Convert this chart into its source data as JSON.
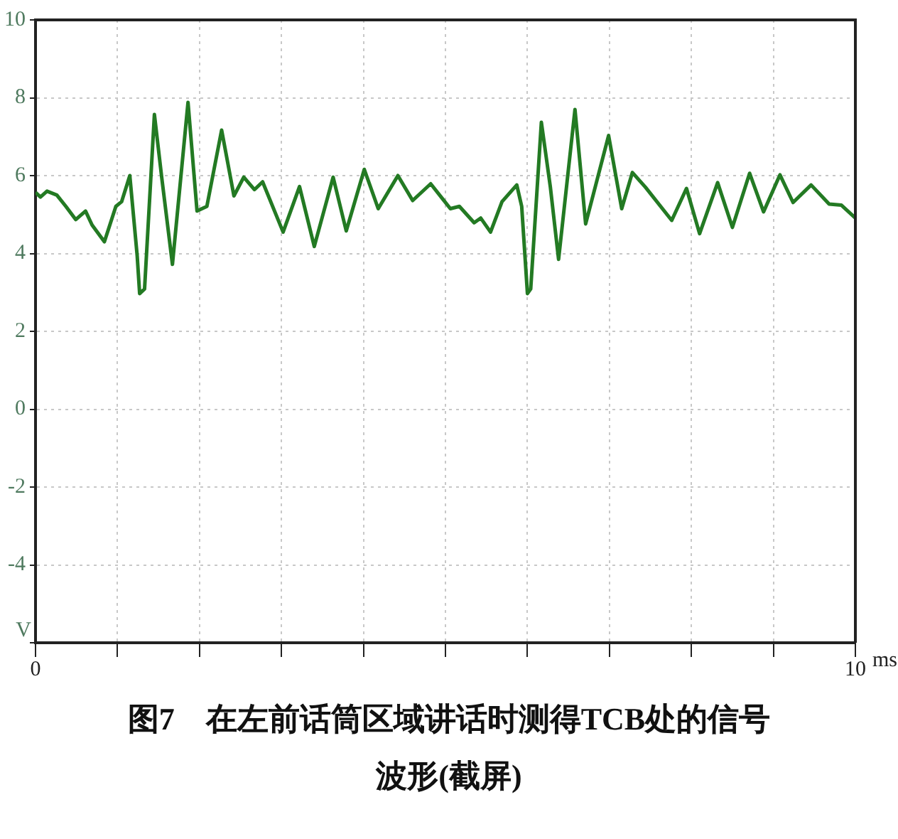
{
  "chart_data": {
    "type": "line",
    "title": "图7　在左前话筒区域讲话时测得TCB处的信号波形(截屏)",
    "xlabel": "ms",
    "ylabel": "V",
    "xlim": [
      0,
      10
    ],
    "ylim": [
      -6,
      10
    ],
    "xticks": [
      0,
      {
        "value": 1,
        "label": null
      },
      {
        "value": 2,
        "label": null
      },
      {
        "value": 3,
        "label": null
      },
      {
        "value": 4,
        "label": null
      },
      {
        "value": 5,
        "label": null
      },
      {
        "value": 6,
        "label": null
      },
      {
        "value": 7,
        "label": null
      },
      {
        "value": 8,
        "label": null
      },
      {
        "value": 9,
        "label": null
      },
      10
    ],
    "yticks": [
      {
        "value": -6,
        "label": null
      },
      -4,
      -2,
      0,
      2,
      4,
      6,
      8,
      10
    ],
    "grid": true,
    "legend": false,
    "marker": "none",
    "line_style": "solid",
    "series": [
      {
        "color": "#237a23",
        "x": [
          0,
          0.06,
          0.14,
          0.26,
          0.37,
          0.49,
          0.61,
          0.69,
          0.84,
          0.98,
          1.05,
          1.15,
          1.24,
          1.27,
          1.33,
          1.45,
          1.54,
          1.67,
          1.86,
          1.97,
          2.09,
          2.27,
          2.42,
          2.54,
          2.67,
          2.77,
          3.02,
          3.22,
          3.4,
          3.63,
          3.79,
          4.01,
          4.18,
          4.42,
          4.6,
          4.82,
          4.97,
          5.06,
          5.17,
          5.35,
          5.43,
          5.55,
          5.69,
          5.87,
          5.93,
          6,
          6.04,
          6.17,
          6.28,
          6.38,
          6.58,
          6.71,
          6.99,
          7.15,
          7.28,
          7.44,
          7.76,
          7.94,
          8.1,
          8.32,
          8.5,
          8.71,
          8.88,
          9.08,
          9.24,
          9.46,
          9.68,
          9.83,
          10
        ],
        "values": [
          5.57,
          5.45,
          5.6,
          5.5,
          5.21,
          4.87,
          5.09,
          4.73,
          4.3,
          5.21,
          5.33,
          6,
          3.94,
          2.97,
          3.09,
          7.57,
          5.94,
          3.72,
          7.88,
          5.09,
          5.21,
          7.17,
          5.48,
          5.96,
          5.64,
          5.84,
          4.55,
          5.72,
          4.18,
          5.96,
          4.58,
          6.16,
          5.15,
          6,
          5.36,
          5.79,
          5.39,
          5.15,
          5.21,
          4.79,
          4.91,
          4.55,
          5.33,
          5.76,
          5.21,
          2.97,
          3.09,
          7.37,
          5.7,
          3.85,
          7.7,
          4.76,
          7.03,
          5.15,
          6.08,
          5.7,
          4.85,
          5.67,
          4.51,
          5.82,
          4.67,
          6.06,
          5.07,
          6.02,
          5.31,
          5.76,
          5.27,
          5.24,
          4.91
        ]
      }
    ]
  }
}
